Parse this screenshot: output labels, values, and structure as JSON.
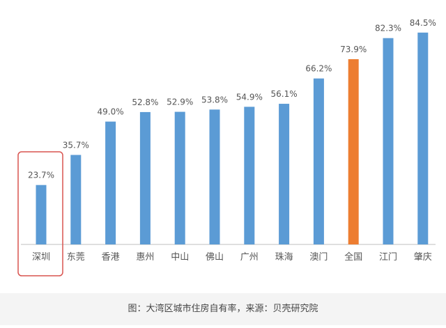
{
  "chart_data": {
    "type": "bar",
    "categories": [
      "深圳",
      "东莞",
      "香港",
      "惠州",
      "中山",
      "佛山",
      "广州",
      "珠海",
      "澳门",
      "全国",
      "江门",
      "肇庆"
    ],
    "values": [
      23.7,
      35.7,
      49.0,
      52.8,
      52.9,
      53.8,
      54.9,
      56.1,
      66.2,
      73.9,
      82.3,
      84.5
    ],
    "value_labels": [
      "23.7%",
      "35.7%",
      "49.0%",
      "52.8%",
      "52.9%",
      "53.8%",
      "54.9%",
      "56.1%",
      "66.2%",
      "73.9%",
      "82.3%",
      "84.5%"
    ],
    "unit": "%",
    "highlighted_category": "全国",
    "boxed_category": "深圳",
    "grid": false,
    "legend": "none",
    "colors": {
      "bar": "#5b9bd5",
      "highlight": "#ed7d31",
      "box": "#d9534f",
      "axis": "#bfbfbf",
      "text": "#555555"
    }
  },
  "caption": "图：大湾区城市住房自有率，来源：贝壳研究院"
}
